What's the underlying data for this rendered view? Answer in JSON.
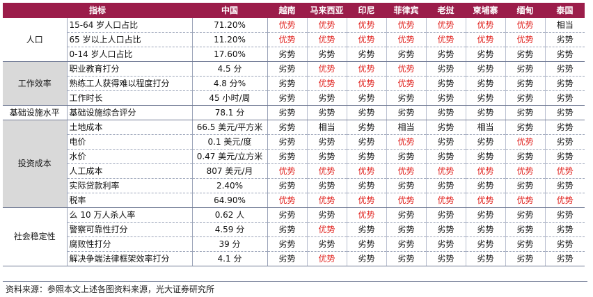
{
  "header": {
    "indicator": "指标",
    "china": "中国",
    "countries": [
      "越南",
      "马来西亚",
      "印尼",
      "菲律宾",
      "老挝",
      "柬埔寨",
      "缅甸",
      "泰国"
    ]
  },
  "groups": [
    {
      "category": "人口",
      "shaded": false,
      "rows": [
        {
          "indicator": "15-64 岁人口占比",
          "china": "71.20%",
          "values": [
            "优势",
            "优势",
            "优势",
            "优势",
            "优势",
            "优势",
            "优势",
            "相当"
          ]
        },
        {
          "indicator": "65 岁以上人口占比",
          "china": "11.20%",
          "values": [
            "优势",
            "优势",
            "优势",
            "优势",
            "优势",
            "优势",
            "优势",
            "劣势"
          ]
        },
        {
          "indicator": "0-14 岁人口占比",
          "china": "17.60%",
          "values": [
            "劣势",
            "劣势",
            "劣势",
            "劣势",
            "劣势",
            "劣势",
            "劣势",
            "劣势"
          ]
        }
      ]
    },
    {
      "category": "工作效率",
      "shaded": true,
      "rows": [
        {
          "indicator": "职业教育打分",
          "china": "4.5 分",
          "values": [
            "劣势",
            "优势",
            "优势",
            "优势",
            "劣势",
            "劣势",
            "劣势",
            "劣势"
          ]
        },
        {
          "indicator": "熟练工人获得难以程度打分",
          "china": "4.8 分%",
          "values": [
            "劣势",
            "优势",
            "优势",
            "优势",
            "劣势",
            "劣势",
            "劣势",
            "劣势"
          ]
        },
        {
          "indicator": "工作时长",
          "china": "45 小时/周",
          "values": [
            "劣势",
            "劣势",
            "劣势",
            "劣势",
            "劣势",
            "劣势",
            "劣势",
            "劣势"
          ]
        }
      ]
    },
    {
      "category": "基础设施水平",
      "shaded": false,
      "rows": [
        {
          "indicator": "基础设施综合评分",
          "china": "78.1 分",
          "values": [
            "劣势",
            "劣势",
            "劣势",
            "劣势",
            "劣势",
            "劣势",
            "劣势",
            "劣势"
          ]
        }
      ]
    },
    {
      "category": "投资成本",
      "shaded": true,
      "rows": [
        {
          "indicator": "土地成本",
          "china": "66.5 美元/平方米",
          "values": [
            "劣势",
            "相当",
            "劣势",
            "相当",
            "劣势",
            "相当",
            "劣势",
            "劣势"
          ]
        },
        {
          "indicator": "电价",
          "china": "0.1 美元/度",
          "values": [
            "劣势",
            "劣势",
            "劣势",
            "优势",
            "劣势",
            "劣势",
            "优势",
            "劣势"
          ]
        },
        {
          "indicator": "水价",
          "china": "0.47 美元/立方米",
          "values": [
            "劣势",
            "劣势",
            "劣势",
            "劣势",
            "劣势",
            "劣势",
            "劣势",
            "劣势"
          ]
        },
        {
          "indicator": "人工成本",
          "china": "807 美元/月",
          "values": [
            "优势",
            "优势",
            "优势",
            "优势",
            "优势",
            "优势",
            "优势",
            "优势"
          ]
        },
        {
          "indicator": "实际贷款利率",
          "china": "2.40%",
          "values": [
            "劣势",
            "劣势",
            "劣势",
            "劣势",
            "劣势",
            "劣势",
            "劣势",
            "劣势"
          ]
        },
        {
          "indicator": "税率",
          "china": "64.90%",
          "values": [
            "优势",
            "优势",
            "优势",
            "优势",
            "优势",
            "优势",
            "优势",
            "优势"
          ]
        }
      ]
    },
    {
      "category": "社会稳定性",
      "shaded": false,
      "rows": [
        {
          "indicator": "么 10 万人杀人率",
          "china": "0.62 人",
          "values": [
            "劣势",
            "劣势",
            "优势",
            "劣势",
            "劣势",
            "劣势",
            "劣势",
            "劣势"
          ]
        },
        {
          "indicator": "警察可靠性打分",
          "china": "4.59 分",
          "values": [
            "劣势",
            "优势",
            "劣势",
            "劣势",
            "劣势",
            "劣势",
            "劣势",
            "劣势"
          ]
        },
        {
          "indicator": "腐败性打分",
          "china": "39 分",
          "values": [
            "劣势",
            "劣势",
            "劣势",
            "劣势",
            "劣势",
            "劣势",
            "劣势",
            "劣势"
          ]
        },
        {
          "indicator": "解决争端法律框架效率打分",
          "china": "4.1 分",
          "values": [
            "劣势",
            "优势",
            "劣势",
            "劣势",
            "劣势",
            "劣势",
            "劣势",
            "劣势"
          ]
        }
      ]
    }
  ],
  "source": "资料来源：参照本文上述各图资料来源，光大证券研究所",
  "colors": {
    "header_bg": "#9b1d4a",
    "advantage": "#e0201c",
    "shaded": "#d9d9d9"
  }
}
